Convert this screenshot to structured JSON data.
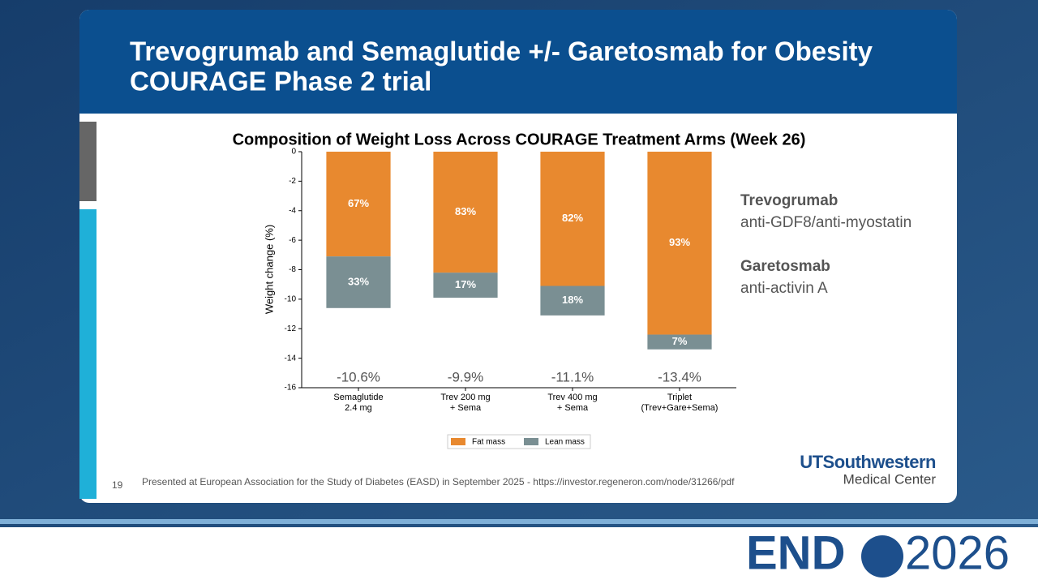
{
  "header": {
    "title_lines": [
      "Trevogrumab and Semaglutide +/- Garetosmab for Obesity",
      "COURAGE Phase 2 trial"
    ]
  },
  "side_notes": [
    {
      "name": "Trevogrumab",
      "description": "anti-GDF8/anti-myostatin"
    },
    {
      "name": "Garetosmab",
      "description": "anti-activin A"
    }
  ],
  "footer": {
    "slide_number": "19",
    "citation": "Presented at European Association for the Study of Diabetes (EASD) in September 2025 - https://investor.regeneron.com/node/31266/pdf",
    "logo_lines": [
      "UTSouthwestern",
      "Medical Center"
    ],
    "event_logo": [
      "END",
      "2026"
    ]
  },
  "chart_data": {
    "type": "stacked-bar",
    "title": "Composition of Weight Loss Across COURAGE Treatment Arms (Week 26)",
    "y_label": "Weight change (%)",
    "categories": [
      [
        "Semaglutide",
        "2.4 mg"
      ],
      [
        "Trev 200 mg",
        "+ Sema"
      ],
      [
        "Trev 400 mg",
        "+ Sema"
      ],
      [
        "Triplet",
        "(Trev+Gare+Sema)"
      ]
    ],
    "series": [
      {
        "name": "Fat mass",
        "color": "#e8892f",
        "values": [
          -7.1,
          -8.2,
          -9.1,
          -12.4
        ],
        "value_labels": [
          "67%",
          "83%",
          "82%",
          "93%"
        ]
      },
      {
        "name": "Lean mass",
        "color": "#7a8f93",
        "values": [
          -3.5,
          -1.7,
          -2.0,
          -1.0
        ],
        "value_labels": [
          "33%",
          "17%",
          "18%",
          "7%"
        ]
      }
    ],
    "totals": [
      -10.6,
      -9.9,
      -11.1,
      -13.4
    ],
    "total_labels": [
      "-10.6%",
      "-9.9%",
      "-11.1%",
      "-13.4%"
    ],
    "ylim": [
      -16,
      0
    ],
    "yticks": [
      0,
      -2,
      -4,
      -6,
      -8,
      -10,
      -12,
      -14,
      -16
    ],
    "legend": "bottom"
  }
}
